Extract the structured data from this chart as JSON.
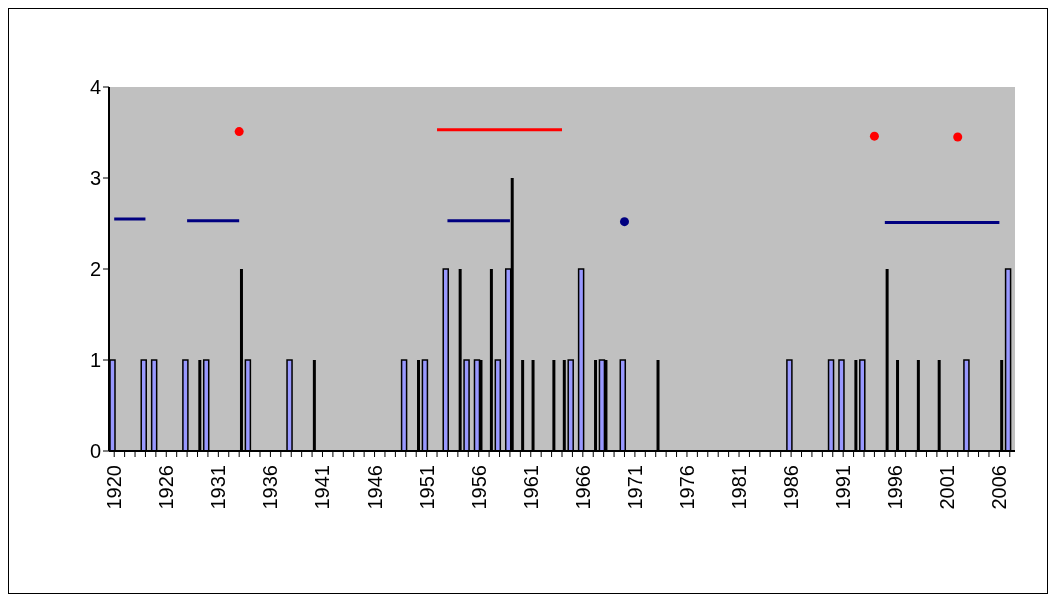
{
  "chart_data": {
    "type": "bar",
    "categories": [
      "1920",
      null,
      null,
      null,
      null,
      "1926",
      null,
      null,
      null,
      null,
      "1931",
      null,
      null,
      null,
      null,
      "1936",
      null,
      null,
      null,
      null,
      "1941",
      null,
      null,
      null,
      null,
      "1946",
      null,
      null,
      null,
      null,
      "1951",
      null,
      null,
      null,
      null,
      "1956",
      null,
      null,
      null,
      null,
      "1961",
      null,
      null,
      null,
      null,
      "1966",
      null,
      null,
      null,
      null,
      "1971",
      null,
      null,
      null,
      null,
      "1976",
      null,
      null,
      null,
      null,
      "1981",
      null,
      null,
      null,
      null,
      "1986",
      null,
      null,
      null,
      null,
      "1991",
      null,
      null,
      null,
      null,
      "1996",
      null,
      null,
      null,
      null,
      "2001",
      null,
      null,
      null,
      null,
      "2006",
      null
    ],
    "series": [
      {
        "color": "#9999ff",
        "values": [
          1,
          null,
          null,
          1,
          1,
          null,
          null,
          1,
          null,
          1,
          null,
          null,
          null,
          1,
          null,
          null,
          null,
          1,
          null,
          null,
          null,
          null,
          null,
          null,
          null,
          null,
          null,
          null,
          1,
          null,
          1,
          null,
          2,
          null,
          1,
          1,
          null,
          1,
          2,
          null,
          null,
          null,
          null,
          null,
          1,
          2,
          null,
          1,
          null,
          1,
          null,
          null,
          null,
          null,
          null,
          null,
          null,
          null,
          null,
          null,
          null,
          null,
          null,
          null,
          null,
          1,
          null,
          null,
          null,
          1,
          1,
          null,
          1,
          null,
          null,
          null,
          null,
          null,
          null,
          null,
          null,
          null,
          1,
          null,
          null,
          null,
          2
        ]
      },
      {
        "color": "#000000",
        "values": [
          null,
          null,
          null,
          null,
          null,
          null,
          null,
          null,
          1,
          null,
          null,
          null,
          2,
          null,
          null,
          null,
          null,
          null,
          null,
          1,
          null,
          null,
          null,
          null,
          null,
          null,
          null,
          null,
          null,
          1,
          null,
          null,
          null,
          2,
          null,
          1,
          2,
          null,
          3,
          1,
          1,
          null,
          1,
          1,
          null,
          null,
          1,
          1,
          null,
          null,
          null,
          null,
          1,
          null,
          null,
          null,
          null,
          null,
          null,
          null,
          null,
          null,
          null,
          null,
          null,
          null,
          null,
          null,
          null,
          null,
          null,
          1,
          null,
          null,
          2,
          1,
          null,
          1,
          null,
          1,
          null,
          null,
          null,
          null,
          null,
          1,
          null
        ]
      },
      {
        "type": "line",
        "color": "#000080",
        "values": [
          2.55,
          2.55,
          2.55,
          2.55,
          null,
          null,
          null,
          2.53,
          2.53,
          2.53,
          2.53,
          2.53,
          2.53,
          null,
          null,
          null,
          null,
          null,
          null,
          null,
          null,
          null,
          null,
          null,
          null,
          null,
          null,
          null,
          null,
          null,
          null,
          null,
          2.53,
          2.53,
          2.53,
          2.53,
          2.53,
          2.53,
          2.53,
          null,
          null,
          null,
          null,
          null,
          null,
          null,
          null,
          null,
          null,
          null,
          null,
          null,
          null,
          null,
          null,
          null,
          null,
          null,
          null,
          null,
          null,
          null,
          null,
          null,
          null,
          null,
          null,
          null,
          null,
          null,
          null,
          null,
          null,
          null,
          2.51,
          2.51,
          2.51,
          2.51,
          2.51,
          2.51,
          2.51,
          2.51,
          2.51,
          2.51,
          2.51,
          2.51,
          null
        ]
      },
      {
        "type": "line",
        "color": "#ff0000",
        "values": [
          null,
          null,
          null,
          null,
          null,
          null,
          null,
          null,
          null,
          null,
          null,
          null,
          null,
          null,
          null,
          null,
          null,
          null,
          null,
          null,
          null,
          null,
          null,
          null,
          null,
          null,
          null,
          null,
          null,
          null,
          null,
          3.53,
          3.53,
          3.53,
          3.53,
          3.53,
          3.53,
          3.53,
          3.53,
          3.53,
          3.53,
          3.53,
          3.53,
          3.53,
          null,
          null,
          null,
          null,
          null,
          null,
          null,
          null,
          null,
          null,
          null,
          null,
          null,
          null,
          null,
          null,
          null,
          null,
          null,
          null,
          null,
          null,
          null,
          null,
          null,
          null,
          null,
          null,
          null,
          null,
          null,
          null,
          null,
          null,
          null,
          null,
          null,
          null,
          null,
          null,
          null,
          null,
          null
        ]
      },
      {
        "type": "scatter",
        "marker": "circle",
        "color": "#ff0000",
        "values": [
          null,
          null,
          null,
          null,
          null,
          null,
          null,
          null,
          null,
          null,
          null,
          null,
          3.51,
          null,
          null,
          null,
          null,
          null,
          null,
          null,
          null,
          null,
          null,
          null,
          null,
          null,
          null,
          null,
          null,
          null,
          null,
          null,
          null,
          null,
          null,
          null,
          null,
          null,
          null,
          null,
          null,
          null,
          null,
          null,
          null,
          null,
          null,
          null,
          null,
          null,
          null,
          null,
          null,
          null,
          null,
          null,
          null,
          null,
          null,
          null,
          null,
          null,
          null,
          null,
          null,
          null,
          null,
          null,
          null,
          null,
          null,
          null,
          null,
          3.46,
          null,
          null,
          null,
          null,
          null,
          null,
          null,
          3.45,
          null,
          null,
          null,
          null,
          null
        ]
      },
      {
        "type": "scatter",
        "marker": "circle",
        "color": "#000080",
        "values": [
          null,
          null,
          null,
          null,
          null,
          null,
          null,
          null,
          null,
          null,
          null,
          null,
          null,
          null,
          null,
          null,
          null,
          null,
          null,
          null,
          null,
          null,
          null,
          null,
          null,
          null,
          null,
          null,
          null,
          null,
          null,
          null,
          null,
          null,
          null,
          null,
          null,
          null,
          null,
          null,
          null,
          null,
          null,
          null,
          null,
          null,
          null,
          null,
          null,
          2.52,
          null,
          null,
          null,
          null,
          null,
          null,
          null,
          null,
          null,
          null,
          null,
          null,
          null,
          null,
          null,
          null,
          null,
          null,
          null,
          null,
          null,
          null,
          null,
          null,
          null,
          null,
          null,
          null,
          null,
          null,
          null,
          null,
          null,
          null,
          null,
          null,
          null
        ]
      }
    ],
    "ylim": [
      0,
      4
    ],
    "yticks": [
      0,
      1,
      2,
      3,
      4
    ],
    "grid": false
  }
}
